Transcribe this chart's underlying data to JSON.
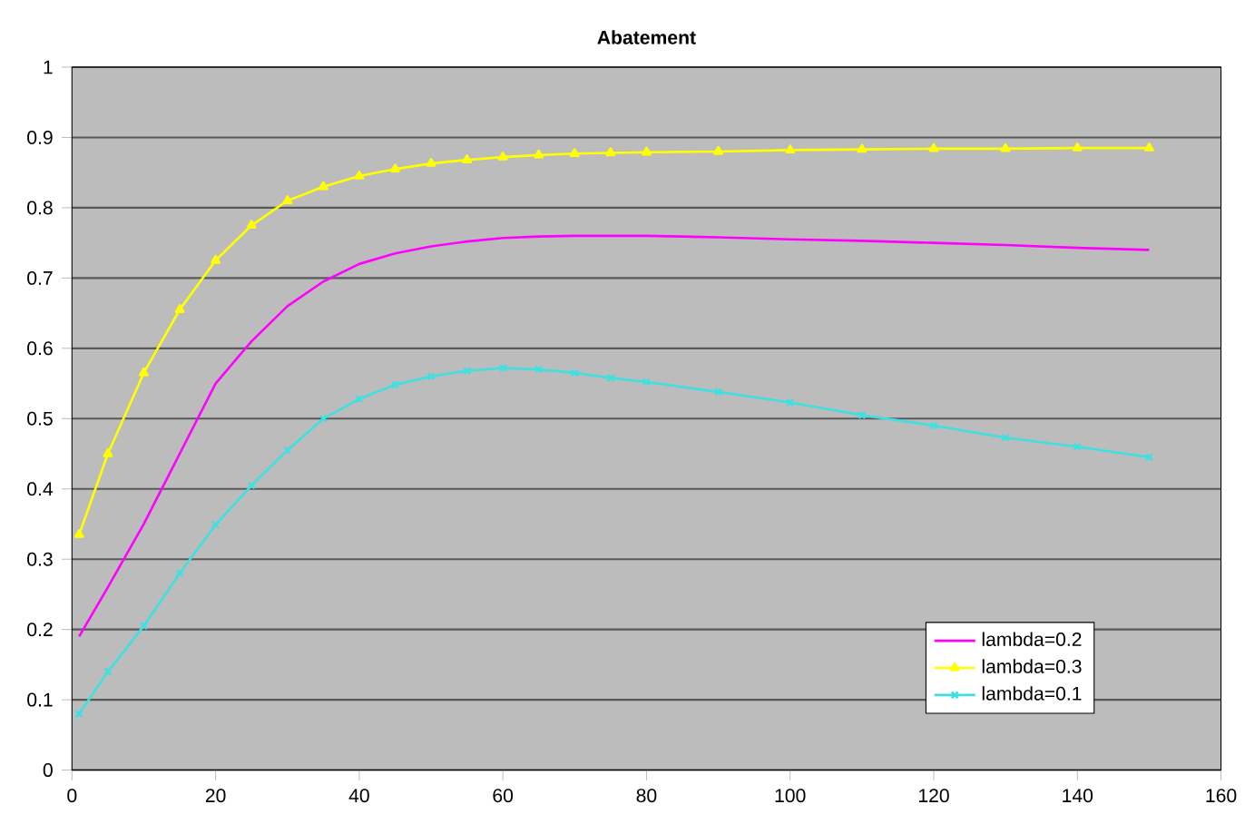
{
  "chart_data": {
    "type": "line",
    "title": "Abatement",
    "x": [
      1,
      5,
      10,
      15,
      20,
      25,
      30,
      35,
      40,
      45,
      50,
      55,
      60,
      65,
      70,
      75,
      80,
      90,
      100,
      110,
      120,
      130,
      140,
      150
    ],
    "series": [
      {
        "name": "lambda=0.2",
        "color": "#ff00ff",
        "marker": "none",
        "values": [
          0.19,
          0.26,
          0.35,
          0.45,
          0.55,
          0.61,
          0.66,
          0.695,
          0.72,
          0.735,
          0.745,
          0.752,
          0.757,
          0.759,
          0.76,
          0.76,
          0.76,
          0.758,
          0.755,
          0.753,
          0.75,
          0.747,
          0.743,
          0.74
        ]
      },
      {
        "name": "lambda=0.3",
        "color": "#ffff00",
        "marker": "triangle",
        "values": [
          0.335,
          0.45,
          0.565,
          0.655,
          0.725,
          0.775,
          0.81,
          0.83,
          0.845,
          0.855,
          0.863,
          0.868,
          0.872,
          0.875,
          0.877,
          0.878,
          0.879,
          0.88,
          0.882,
          0.883,
          0.884,
          0.884,
          0.885,
          0.885
        ]
      },
      {
        "name": "lambda=0.1",
        "color": "#40e0e0",
        "marker": "cross",
        "values": [
          0.08,
          0.14,
          0.205,
          0.28,
          0.349,
          0.405,
          0.455,
          0.5,
          0.528,
          0.548,
          0.56,
          0.568,
          0.572,
          0.57,
          0.565,
          0.558,
          0.552,
          0.538,
          0.523,
          0.505,
          0.49,
          0.473,
          0.46,
          0.445
        ]
      }
    ],
    "xlim": [
      0,
      160
    ],
    "xticks": [
      0,
      20,
      40,
      60,
      80,
      100,
      120,
      140,
      160
    ],
    "ylim": [
      0,
      1
    ],
    "yticks": [
      0,
      0.1,
      0.2,
      0.3,
      0.4,
      0.5,
      0.6,
      0.7,
      0.8,
      0.9,
      1
    ],
    "grid": "y",
    "legend": "bottom right",
    "line_style": "solid"
  }
}
